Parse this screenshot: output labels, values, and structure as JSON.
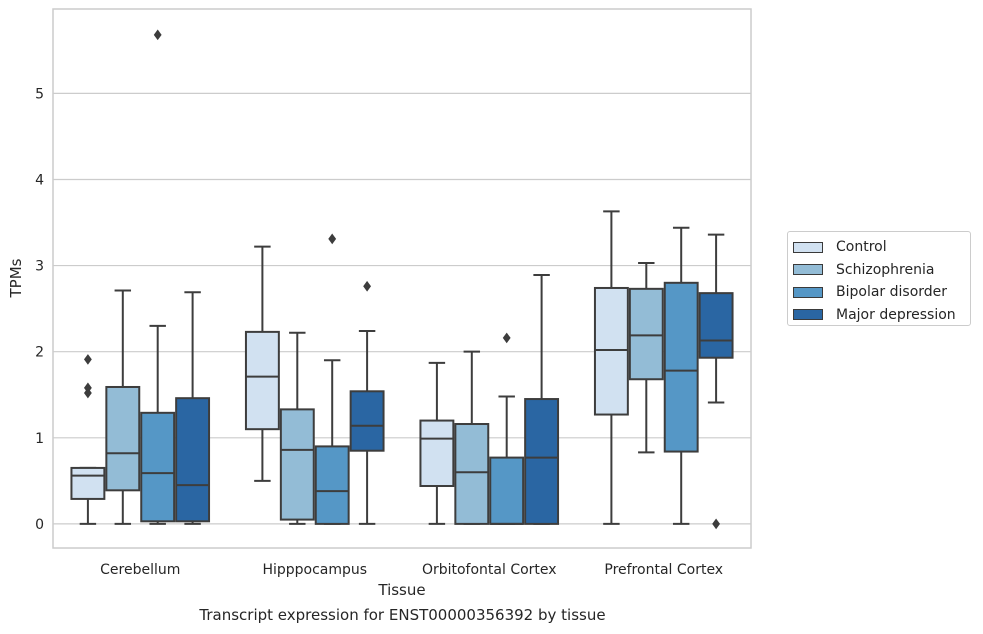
{
  "caption": "Transcript expression for ENST00000356392 by tissue",
  "chart_data": {
    "type": "box",
    "xlabel": "Tissue",
    "ylabel": "TPMs",
    "ylim": [
      -0.28,
      5.98
    ],
    "yticks": [
      0,
      1,
      2,
      3,
      4,
      5
    ],
    "grid": "horizontal",
    "legend_position": "right",
    "categories": [
      "Cerebellum",
      "Hipppocampus",
      "Orbitofontal Cortex",
      "Prefrontal Cortex"
    ],
    "series": [
      {
        "name": "Control",
        "color": "#d1e1f1",
        "boxes": [
          {
            "whislo": 0.0,
            "q1": 0.29,
            "med": 0.56,
            "q3": 0.65,
            "whishi": 0.65,
            "fliers": [
              1.52,
              1.58,
              1.91
            ]
          },
          {
            "whislo": 0.5,
            "q1": 1.1,
            "med": 1.71,
            "q3": 2.23,
            "whishi": 3.22,
            "fliers": []
          },
          {
            "whislo": 0.0,
            "q1": 0.44,
            "med": 0.99,
            "q3": 1.2,
            "whishi": 1.87,
            "fliers": []
          },
          {
            "whislo": 0.0,
            "q1": 1.27,
            "med": 2.02,
            "q3": 2.74,
            "whishi": 3.63,
            "fliers": []
          }
        ]
      },
      {
        "name": "Schizophrenia",
        "color": "#93bcd6",
        "boxes": [
          {
            "whislo": 0.0,
            "q1": 0.39,
            "med": 0.82,
            "q3": 1.59,
            "whishi": 2.71,
            "fliers": []
          },
          {
            "whislo": 0.0,
            "q1": 0.05,
            "med": 0.86,
            "q3": 1.33,
            "whishi": 2.22,
            "fliers": []
          },
          {
            "whislo": 0.0,
            "q1": 0.0,
            "med": 0.6,
            "q3": 1.16,
            "whishi": 2.0,
            "fliers": []
          },
          {
            "whislo": 0.83,
            "q1": 1.68,
            "med": 2.19,
            "q3": 2.73,
            "whishi": 3.03,
            "fliers": []
          }
        ]
      },
      {
        "name": "Bipolar disorder",
        "color": "#5597c6",
        "boxes": [
          {
            "whislo": 0.0,
            "q1": 0.03,
            "med": 0.59,
            "q3": 1.29,
            "whishi": 2.3,
            "fliers": [
              5.68
            ]
          },
          {
            "whislo": 0.0,
            "q1": 0.0,
            "med": 0.38,
            "q3": 0.9,
            "whishi": 1.9,
            "fliers": [
              3.31
            ]
          },
          {
            "whislo": 0.0,
            "q1": 0.0,
            "med": 0.0,
            "q3": 0.77,
            "whishi": 1.48,
            "fliers": [
              2.16
            ]
          },
          {
            "whislo": 0.0,
            "q1": 0.84,
            "med": 1.78,
            "q3": 2.8,
            "whishi": 3.44,
            "fliers": []
          }
        ]
      },
      {
        "name": "Major depression",
        "color": "#2a66a3",
        "boxes": [
          {
            "whislo": 0.0,
            "q1": 0.03,
            "med": 0.45,
            "q3": 1.46,
            "whishi": 2.69,
            "fliers": []
          },
          {
            "whislo": 0.0,
            "q1": 0.85,
            "med": 1.14,
            "q3": 1.54,
            "whishi": 2.24,
            "fliers": [
              2.76
            ]
          },
          {
            "whislo": 0.0,
            "q1": 0.0,
            "med": 0.77,
            "q3": 1.45,
            "whishi": 2.89,
            "fliers": []
          },
          {
            "whislo": 1.41,
            "q1": 1.93,
            "med": 2.13,
            "q3": 2.68,
            "whishi": 3.36,
            "fliers": [
              0.0
            ]
          }
        ]
      }
    ]
  }
}
